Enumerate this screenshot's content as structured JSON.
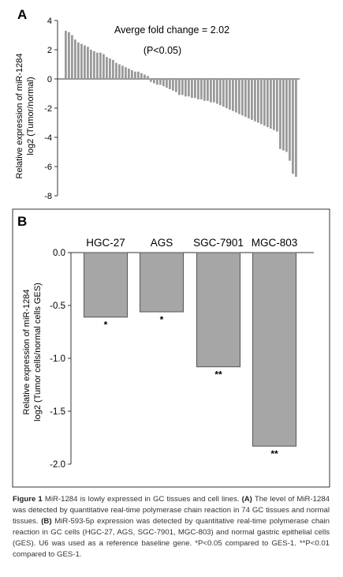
{
  "chart_data": [
    {
      "type": "bar",
      "panel_label": "A",
      "annotation": "Averge fold change = 2.02",
      "annotation_p": "(P<0.05)",
      "ylabel": "Relative expression of miR-1284",
      "ylabel2": "log2 (Tumor/normal)",
      "ylim": [
        -8,
        4
      ],
      "yticks": [
        4,
        2,
        0,
        -2,
        -4,
        -6,
        -8
      ],
      "tick_labels": [
        "4",
        "2",
        "0",
        "-2",
        "-4",
        "-6",
        "-8"
      ],
      "values": [
        3.3,
        3.2,
        3.0,
        2.7,
        2.5,
        2.4,
        2.3,
        2.2,
        2.0,
        1.9,
        1.8,
        1.8,
        1.7,
        1.5,
        1.4,
        1.3,
        1.1,
        1.0,
        0.9,
        0.8,
        0.7,
        0.6,
        0.5,
        0.5,
        0.4,
        0.3,
        0.2,
        -0.2,
        -0.3,
        -0.4,
        -0.4,
        -0.5,
        -0.6,
        -0.7,
        -0.8,
        -0.9,
        -1.1,
        -1.1,
        -1.2,
        -1.2,
        -1.3,
        -1.3,
        -1.4,
        -1.4,
        -1.5,
        -1.5,
        -1.6,
        -1.6,
        -1.7,
        -1.8,
        -1.9,
        -2.0,
        -2.1,
        -2.2,
        -2.3,
        -2.4,
        -2.5,
        -2.6,
        -2.7,
        -2.8,
        -2.9,
        -3.0,
        -3.1,
        -3.2,
        -3.3,
        -3.4,
        -3.5,
        -3.6,
        -4.8,
        -4.9,
        -5.0,
        -5.6,
        -6.5,
        -6.7
      ],
      "grid": false
    },
    {
      "type": "bar",
      "panel_label": "B",
      "ylabel": "Relative expression of miR-1284",
      "ylabel2": "log2 (Tumor cells/normal cells GES)",
      "ylim": [
        -2.0,
        0.0
      ],
      "yticks": [
        0.0,
        -0.5,
        -1.0,
        -1.5,
        -2.0
      ],
      "tick_labels": [
        "0.0",
        "-0.5",
        "-1.0",
        "-1.5",
        "-2.0"
      ],
      "categories": [
        "HGC-27",
        "AGS",
        "SGC-7901",
        "MGC-803"
      ],
      "values": [
        -0.61,
        -0.56,
        -1.08,
        -1.83
      ],
      "significance": [
        "*",
        "*",
        "**",
        "**"
      ],
      "grid": false
    }
  ],
  "caption": {
    "figure_label": "Figure 1",
    "title": "MiR-1284 is lowly expressed in GC tissues and cell lines.",
    "text_a_label": "(A)",
    "text_a": "The level of MiR-1284 was detected by quantitative real-time polymerase chain reaction in 74 GC tissues and normal tissues.",
    "text_b_label": "(B)",
    "text_b": "MiR-593-5p expression was detected by quantitative real-time polymerase chain reaction in GC cells (HGC-27, AGS, SGC-7901, MGC-803) and normal gastric epithelial cells (GES). U6 was used as a reference baseline gene. *P<0.05 compared to GES-1. **P<0.01 compared to GES-1."
  },
  "colors": {
    "bar": "#a6a6a6",
    "bar_edge": "#555555",
    "axis": "#333333"
  }
}
